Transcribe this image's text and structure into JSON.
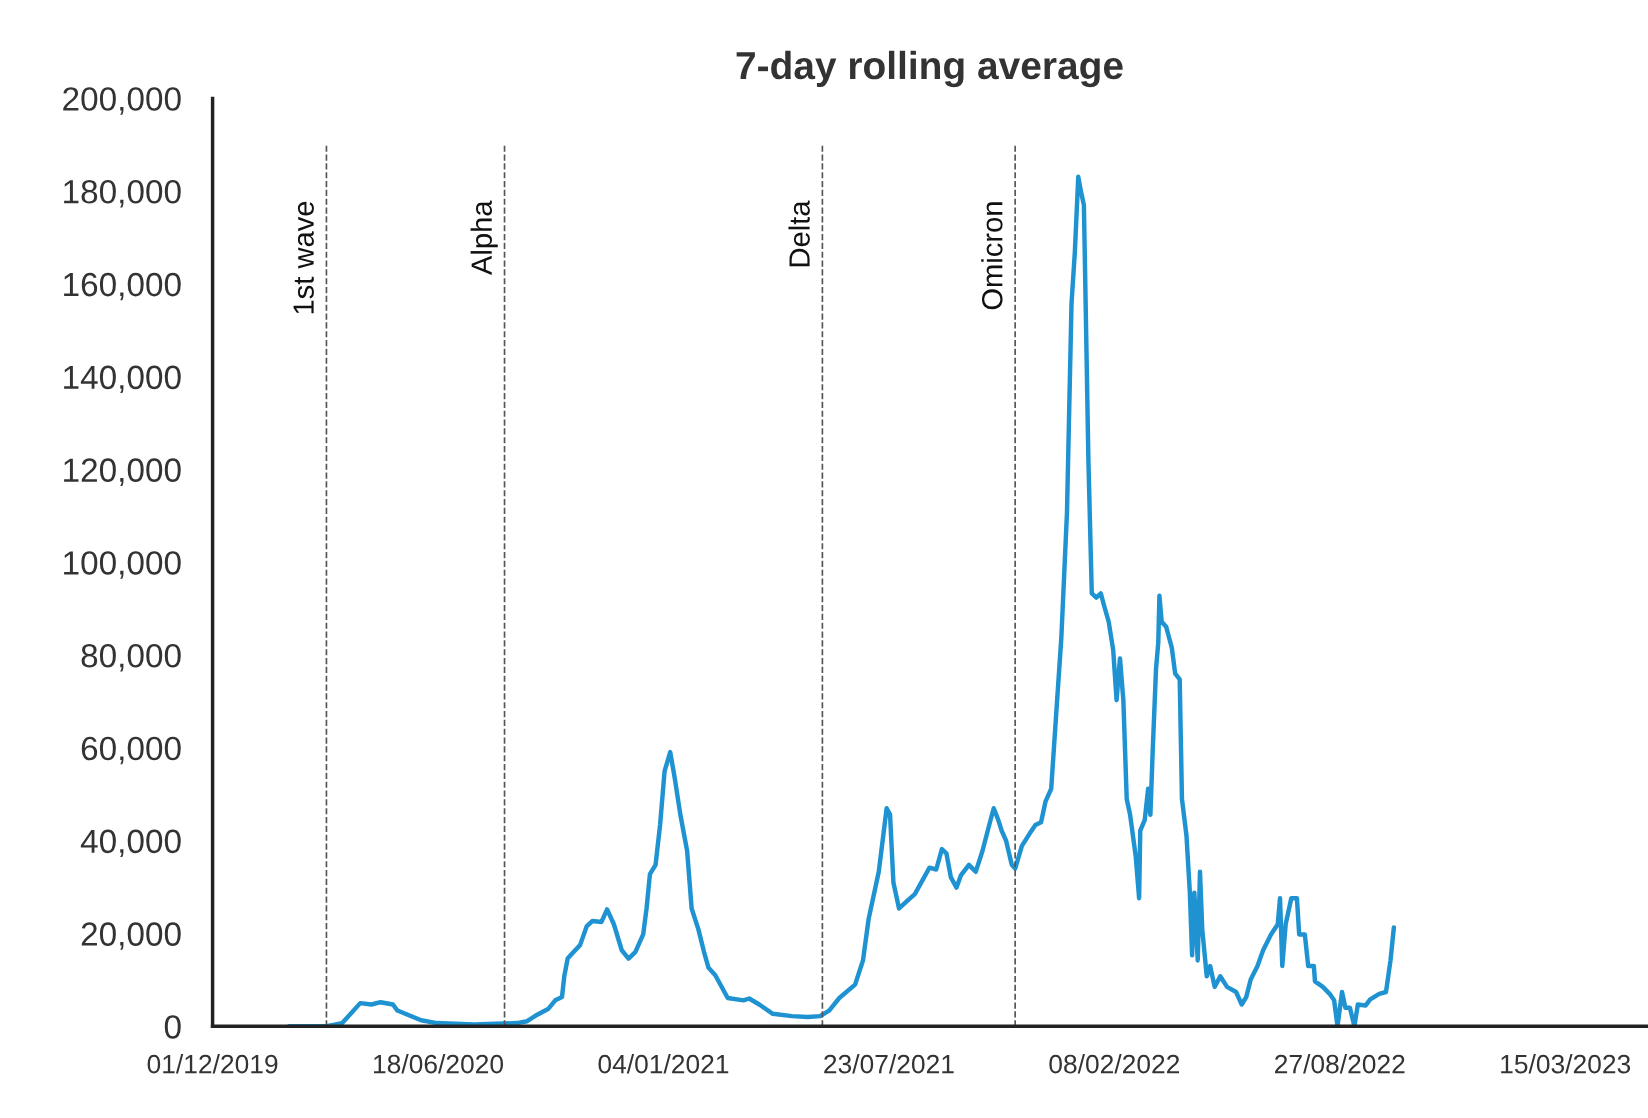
{
  "chart_data": {
    "type": "line",
    "title": "7-day rolling average",
    "x": [
      "2020-02-07",
      "2020-03-10",
      "2020-03-25",
      "2020-04-10",
      "2020-04-20",
      "2020-04-28",
      "2020-05-09",
      "2020-05-13",
      "2020-06-03",
      "2020-06-17",
      "2020-07-20",
      "2020-08-27",
      "2020-09-05",
      "2020-09-14",
      "2020-09-24",
      "2020-09-30",
      "2020-10-06",
      "2020-10-08",
      "2020-10-11",
      "2020-10-15",
      "2020-10-22",
      "2020-10-28",
      "2020-11-02",
      "2020-11-10",
      "2020-11-15",
      "2020-11-21",
      "2020-11-28",
      "2020-12-04",
      "2020-12-10",
      "2020-12-17",
      "2020-12-20",
      "2020-12-23",
      "2020-12-28",
      "2021-01-01",
      "2021-01-05",
      "2021-01-10",
      "2021-01-14",
      "2021-01-19",
      "2021-01-25",
      "2021-01-29",
      "2021-02-04",
      "2021-02-09",
      "2021-02-13",
      "2021-02-19",
      "2021-03-02",
      "2021-03-16",
      "2021-03-21",
      "2021-03-30",
      "2021-04-11",
      "2021-04-28",
      "2021-05-12",
      "2021-05-23",
      "2021-05-31",
      "2021-06-09",
      "2021-06-23",
      "2021-06-30",
      "2021-07-05",
      "2021-07-14",
      "2021-07-18",
      "2021-07-21",
      "2021-07-24",
      "2021-07-27",
      "2021-08-01",
      "2021-08-09",
      "2021-08-15",
      "2021-08-23",
      "2021-08-28",
      "2021-09-03",
      "2021-09-08",
      "2021-09-12",
      "2021-09-16",
      "2021-09-21",
      "2021-09-25",
      "2021-10-02",
      "2021-10-08",
      "2021-10-14",
      "2021-10-20",
      "2021-10-24",
      "2021-10-28",
      "2021-10-31",
      "2021-11-04",
      "2021-11-09",
      "2021-11-12",
      "2021-11-18",
      "2021-11-25",
      "2021-11-30",
      "2021-12-05",
      "2021-12-09",
      "2021-12-14",
      "2021-12-18",
      "2021-12-23",
      "2021-12-28",
      "2022-01-01",
      "2022-01-04",
      "2022-01-07",
      "2022-01-09",
      "2022-01-12",
      "2022-01-16",
      "2022-01-19",
      "2022-01-23",
      "2022-01-27",
      "2022-01-30",
      "2022-02-03",
      "2022-02-07",
      "2022-02-10",
      "2022-02-13",
      "2022-02-16",
      "2022-02-19",
      "2022-02-22",
      "2022-02-27",
      "2022-03-02",
      "2022-03-03",
      "2022-03-07",
      "2022-03-10",
      "2022-03-12",
      "2022-03-14",
      "2022-03-17",
      "2022-03-19",
      "2022-03-20",
      "2022-03-22",
      "2022-03-26",
      "2022-03-31",
      "2022-04-03",
      "2022-04-07",
      "2022-04-09",
      "2022-04-13",
      "2022-04-16",
      "2022-04-18",
      "2022-04-20",
      "2022-04-23",
      "2022-04-25",
      "2022-04-27",
      "2022-05-01",
      "2022-05-04",
      "2022-05-08",
      "2022-05-13",
      "2022-05-19",
      "2022-05-27",
      "2022-06-01",
      "2022-06-05",
      "2022-06-09",
      "2022-06-15",
      "2022-06-20",
      "2022-06-27",
      "2022-07-03",
      "2022-07-05",
      "2022-07-07",
      "2022-07-10",
      "2022-07-15",
      "2022-07-20",
      "2022-07-22",
      "2022-07-27",
      "2022-07-30",
      "2022-08-04",
      "2022-08-05",
      "2022-08-12",
      "2022-08-18",
      "2022-08-22",
      "2022-08-25",
      "2022-08-29",
      "2022-09-01",
      "2022-09-05",
      "2022-09-09",
      "2022-09-12",
      "2022-09-19",
      "2022-09-23",
      "2022-10-01",
      "2022-10-07",
      "2022-10-11",
      "2022-10-14"
    ],
    "series": [
      {
        "color": "#1f93d1",
        "values": [
          0,
          0,
          700,
          5000,
          4700,
          5200,
          4700,
          3400,
          1300,
          700,
          400,
          700,
          1100,
          2500,
          3800,
          5600,
          6300,
          10800,
          14600,
          15700,
          17500,
          21600,
          22700,
          22500,
          25200,
          22000,
          16400,
          14600,
          16000,
          19800,
          25400,
          32800,
          34800,
          43400,
          55000,
          59100,
          53500,
          45600,
          37800,
          25400,
          20900,
          16000,
          12600,
          11000,
          6100,
          5600,
          6000,
          4700,
          2700,
          2200,
          2000,
          2200,
          3400,
          6100,
          9000,
          14200,
          23100,
          33300,
          41100,
          47000,
          45700,
          31000,
          25400,
          27200,
          28500,
          32000,
          34200,
          33800,
          38200,
          37300,
          32100,
          29900,
          32600,
          34800,
          33300,
          37800,
          43400,
          47000,
          44500,
          42200,
          40000,
          34800,
          34000,
          38900,
          41600,
          43400,
          44000,
          48500,
          51200,
          65800,
          83800,
          110800,
          155700,
          167000,
          183100,
          180400,
          177000,
          122000,
          93300,
          92400,
          93300,
          90600,
          87200,
          81100,
          70300,
          79300,
          70300,
          49000,
          45600,
          36600,
          27600,
          42200,
          44500,
          51200,
          45600,
          59100,
          77100,
          82700,
          92800,
          87200,
          86100,
          81600,
          76000,
          74800,
          49000,
          41100,
          28800,
          15300,
          28800,
          14200,
          33300,
          20900,
          10800,
          13000,
          8500,
          10800,
          8500,
          7400,
          4700,
          6300,
          10100,
          13000,
          16400,
          19800,
          22000,
          27600,
          13000,
          22000,
          27600,
          27600,
          19800,
          19800,
          13000,
          13000,
          9700,
          8500,
          7000,
          5600,
          0,
          7400,
          4000,
          4000,
          0,
          4700,
          4500,
          5800,
          7000,
          7400,
          14200,
          21300
        ]
      }
    ],
    "xlim": [
      "2019-12-01",
      "2023-05-26"
    ],
    "xticks": [
      {
        "value": "2019-12-01",
        "label": "01/12/2019"
      },
      {
        "value": "2020-06-18",
        "label": "18/06/2020"
      },
      {
        "value": "2021-01-04",
        "label": "04/01/2021"
      },
      {
        "value": "2021-07-23",
        "label": "23/07/2021"
      },
      {
        "value": "2022-02-08",
        "label": "08/02/2022"
      },
      {
        "value": "2022-08-27",
        "label": "27/08/2022"
      },
      {
        "value": "2023-03-15",
        "label": "15/03/2023"
      }
    ],
    "ylim": [
      0,
      200000
    ],
    "yticks": [
      {
        "value": 0,
        "label": "0"
      },
      {
        "value": 20000,
        "label": "20,000"
      },
      {
        "value": 40000,
        "label": "40,000"
      },
      {
        "value": 60000,
        "label": "60,000"
      },
      {
        "value": 80000,
        "label": "80,000"
      },
      {
        "value": 100000,
        "label": "100,000"
      },
      {
        "value": 120000,
        "label": "120,000"
      },
      {
        "value": 140000,
        "label": "140,000"
      },
      {
        "value": 160000,
        "label": "160,000"
      },
      {
        "value": 180000,
        "label": "180,000"
      },
      {
        "value": 200000,
        "label": "200,000"
      }
    ],
    "ref_lines": [
      {
        "axis": "x",
        "value": "2020-03-11",
        "label": "1st wave",
        "color": "#555555",
        "line_style": "dashed"
      },
      {
        "axis": "x",
        "value": "2020-08-16",
        "label": "Alpha",
        "color": "#555555",
        "line_style": "dashed"
      },
      {
        "axis": "x",
        "value": "2021-05-25",
        "label": "Delta",
        "color": "#555555",
        "line_style": "dashed"
      },
      {
        "axis": "x",
        "value": "2021-11-12",
        "label": "Omicron",
        "color": "#555555",
        "line_style": "dashed"
      }
    ],
    "grid": false,
    "legend": false,
    "line_style": "solid",
    "marker": "none"
  }
}
